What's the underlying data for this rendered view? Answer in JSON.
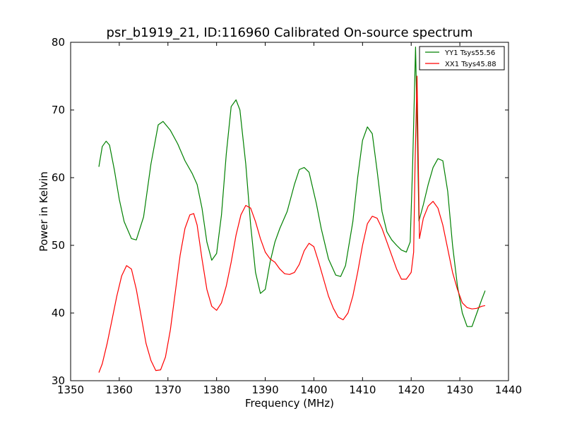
{
  "chart_data": {
    "type": "line",
    "title": "psr_b1919_21, ID:116960 Calibrated On-source spectrum",
    "xlabel": "Frequency (MHz)",
    "ylabel": "Power in Kelvin",
    "xlim": [
      1350,
      1440
    ],
    "ylim": [
      30,
      80
    ],
    "xticks": [
      1350,
      1360,
      1370,
      1380,
      1390,
      1400,
      1410,
      1420,
      1430,
      1440
    ],
    "yticks": [
      30,
      40,
      50,
      60,
      70,
      80
    ],
    "grid": false,
    "legend_position": "top-right",
    "series": [
      {
        "name": "YY1 Tsys55.56",
        "color": "#008000",
        "x": [
          1355.8,
          1356.5,
          1357.3,
          1358.0,
          1359.0,
          1360.0,
          1361.0,
          1362.5,
          1363.5,
          1365.0,
          1366.5,
          1368.0,
          1369.0,
          1370.5,
          1372.0,
          1373.5,
          1375.0,
          1376.0,
          1377.0,
          1378.0,
          1379.0,
          1380.0,
          1381.0,
          1382.0,
          1383.0,
          1384.0,
          1384.8,
          1386.0,
          1387.0,
          1388.0,
          1389.0,
          1390.0,
          1391.0,
          1392.0,
          1393.0,
          1394.5,
          1396.0,
          1397.0,
          1398.0,
          1399.0,
          1400.5,
          1401.5,
          1403.0,
          1404.5,
          1405.5,
          1406.5,
          1408.0,
          1409.0,
          1410.0,
          1411.0,
          1412.0,
          1413.0,
          1414.0,
          1415.0,
          1416.0,
          1417.0,
          1418.0,
          1419.0,
          1419.8,
          1420.3,
          1420.9,
          1421.3,
          1421.6,
          1422.5,
          1423.5,
          1424.5,
          1425.5,
          1426.5,
          1427.5,
          1428.5,
          1429.5,
          1430.5,
          1431.5,
          1432.5,
          1433.5,
          1434.5,
          1435.2
        ],
        "values": [
          61.6,
          64.6,
          65.4,
          64.8,
          61.1,
          56.8,
          53.5,
          51.0,
          50.8,
          54.2,
          62.0,
          67.8,
          68.3,
          67.0,
          65.0,
          62.5,
          60.6,
          59.0,
          55.5,
          50.5,
          47.8,
          48.8,
          54.5,
          63.5,
          70.5,
          71.5,
          70.0,
          62.0,
          53.0,
          46.0,
          42.9,
          43.5,
          47.5,
          50.5,
          52.5,
          55.0,
          59.0,
          61.2,
          61.5,
          60.8,
          56.2,
          52.5,
          48.0,
          45.6,
          45.4,
          47.0,
          53.5,
          60.0,
          65.5,
          67.5,
          66.5,
          61.0,
          55.0,
          52.0,
          50.8,
          50.0,
          49.3,
          49.0,
          50.5,
          62.0,
          79.3,
          65.0,
          53.6,
          56.0,
          59.0,
          61.5,
          62.8,
          62.5,
          58.0,
          50.0,
          44.0,
          40.0,
          38.0,
          38.0,
          40.0,
          42.0,
          43.3
        ]
      },
      {
        "name": "XX1 Tsys45.88",
        "color": "#ff0000",
        "x": [
          1355.8,
          1356.5,
          1357.5,
          1358.5,
          1359.5,
          1360.5,
          1361.5,
          1362.5,
          1363.5,
          1364.5,
          1365.5,
          1366.5,
          1367.5,
          1368.5,
          1369.5,
          1370.5,
          1371.5,
          1372.5,
          1373.5,
          1374.5,
          1375.3,
          1376.0,
          1377.0,
          1378.0,
          1379.0,
          1380.0,
          1381.0,
          1382.0,
          1383.0,
          1384.0,
          1385.0,
          1386.0,
          1387.0,
          1388.0,
          1389.0,
          1390.0,
          1391.0,
          1392.0,
          1393.0,
          1394.0,
          1395.0,
          1396.0,
          1397.0,
          1398.0,
          1399.0,
          1400.0,
          1401.0,
          1402.0,
          1403.0,
          1404.0,
          1405.0,
          1406.0,
          1407.0,
          1408.0,
          1409.0,
          1410.0,
          1411.0,
          1412.0,
          1413.0,
          1414.0,
          1415.0,
          1416.0,
          1417.0,
          1418.0,
          1419.0,
          1420.0,
          1420.5,
          1420.8,
          1421.2,
          1421.7,
          1422.5,
          1423.5,
          1424.5,
          1425.5,
          1426.5,
          1427.5,
          1428.5,
          1429.5,
          1430.5,
          1431.5,
          1432.5,
          1433.5,
          1434.5,
          1435.2
        ],
        "values": [
          31.2,
          32.5,
          35.5,
          39.0,
          42.5,
          45.5,
          47.0,
          46.5,
          43.5,
          39.5,
          35.5,
          33.0,
          31.5,
          31.6,
          33.5,
          37.5,
          43.0,
          48.5,
          52.5,
          54.5,
          54.7,
          53.0,
          48.0,
          43.5,
          41.0,
          40.4,
          41.5,
          44.0,
          47.5,
          51.5,
          54.5,
          55.9,
          55.5,
          53.5,
          51.0,
          49.0,
          48.0,
          47.5,
          46.5,
          45.8,
          45.7,
          46.0,
          47.2,
          49.2,
          50.3,
          49.8,
          47.5,
          45.0,
          42.5,
          40.7,
          39.4,
          39.0,
          40.0,
          42.5,
          46.0,
          50.0,
          53.2,
          54.3,
          54.0,
          52.5,
          50.5,
          48.5,
          46.5,
          45.0,
          45.0,
          46.0,
          49.0,
          62.0,
          75.0,
          51.0,
          54.0,
          55.8,
          56.5,
          55.5,
          53.0,
          49.5,
          46.0,
          43.5,
          41.5,
          40.8,
          40.6,
          40.7,
          41.0,
          41.1
        ]
      }
    ]
  }
}
